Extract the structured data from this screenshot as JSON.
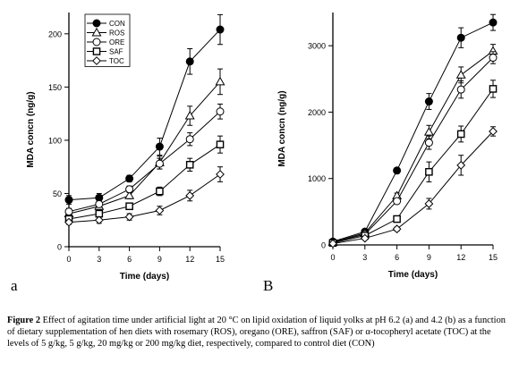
{
  "chart_data": [
    {
      "type": "line",
      "panel": "a",
      "x": [
        0,
        3,
        6,
        9,
        12,
        15
      ],
      "xticks": [
        "0",
        "3",
        "6",
        "9",
        "12",
        "15"
      ],
      "xlabel": "Time (days)",
      "ylabel": "MDA concn (ng/g)",
      "ylim": [
        0,
        220
      ],
      "yticks": [
        0,
        50,
        100,
        150,
        200
      ],
      "legend": "top-left",
      "series": [
        {
          "name": "CON",
          "marker": "circle-filled",
          "values": [
            44,
            46,
            64,
            94,
            174,
            204
          ],
          "err": [
            4,
            4,
            3,
            8,
            12,
            14
          ]
        },
        {
          "name": "ROS",
          "marker": "triangle-open",
          "values": [
            31,
            38,
            48,
            79,
            123,
            155
          ],
          "err": [
            3,
            3,
            3,
            6,
            9,
            12
          ]
        },
        {
          "name": "ORE",
          "marker": "circle-open",
          "values": [
            33,
            40,
            54,
            78,
            101,
            127
          ],
          "err": [
            3,
            3,
            3,
            5,
            6,
            7
          ]
        },
        {
          "name": "SAF",
          "marker": "square-open",
          "values": [
            26,
            31,
            38,
            52,
            77,
            96
          ],
          "err": [
            3,
            3,
            3,
            4,
            6,
            8
          ]
        },
        {
          "name": "TOC",
          "marker": "diamond-open",
          "values": [
            23,
            25,
            28,
            34,
            48,
            68
          ],
          "err": [
            2,
            3,
            3,
            4,
            5,
            7
          ]
        }
      ]
    },
    {
      "type": "line",
      "panel": "B",
      "x": [
        0,
        3,
        6,
        9,
        12,
        15
      ],
      "xticks": [
        "0",
        "3",
        "6",
        "9",
        "12",
        "15"
      ],
      "xlabel": "Time (days)",
      "ylabel": "MDA concn (ng/g)",
      "ylim": [
        0,
        3500
      ],
      "yticks": [
        0,
        1000,
        2000,
        3000
      ],
      "series": [
        {
          "name": "CON",
          "marker": "circle-filled",
          "values": [
            50,
            200,
            1120,
            2160,
            3120,
            3350
          ],
          "err": [
            20,
            30,
            40,
            120,
            150,
            120
          ]
        },
        {
          "name": "ROS",
          "marker": "triangle-open",
          "values": [
            40,
            180,
            740,
            1700,
            2560,
            2920
          ],
          "err": [
            20,
            30,
            40,
            100,
            120,
            100
          ]
        },
        {
          "name": "ORE",
          "marker": "circle-open",
          "values": [
            40,
            160,
            660,
            1540,
            2340,
            2820
          ],
          "err": [
            20,
            30,
            40,
            100,
            130,
            90
          ]
        },
        {
          "name": "SAF",
          "marker": "square-open",
          "values": [
            30,
            140,
            390,
            1100,
            1670,
            2350
          ],
          "err": [
            20,
            20,
            30,
            150,
            120,
            130
          ]
        },
        {
          "name": "TOC",
          "marker": "diamond-open",
          "values": [
            20,
            100,
            240,
            620,
            1200,
            1710
          ],
          "err": [
            10,
            20,
            30,
            80,
            150,
            70
          ]
        }
      ]
    }
  ],
  "caption": {
    "label": "Figure 2",
    "text": " Effect of agitation time under artificial light at 20 °C on lipid oxidation of liquid yolks at pH 6.2 (a) and 4.2 (b) as a function of dietary supplementation of hen diets with rosemary (ROS), oregano (ORE), saffron (SAF) or α-tocopheryl acetate (TOC) at the levels of 5 g/kg, 5 g/kg, 20 mg/kg or 200 mg/kg diet, respectively, compared to control diet (CON)"
  }
}
